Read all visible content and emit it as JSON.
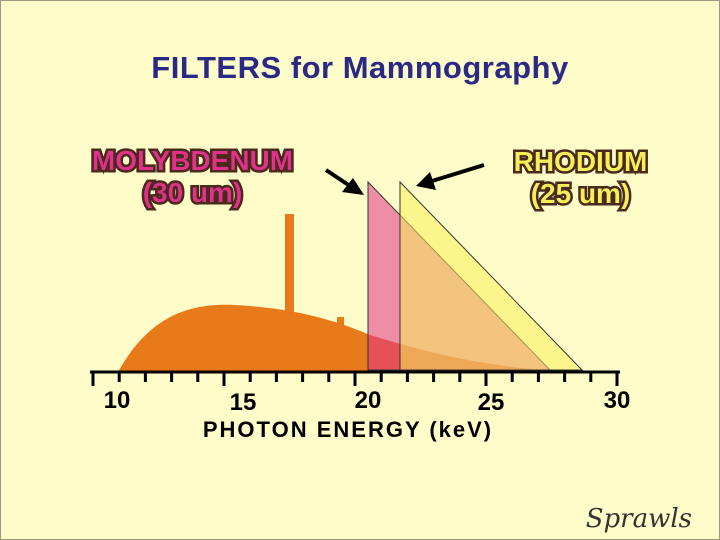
{
  "title": "FILTERS for Mammography",
  "molybdenum": {
    "name": "MOLYBDENUM",
    "thickness": "(30 um)",
    "color": "#e0328a",
    "edge_kev": 20.0
  },
  "rhodium": {
    "name": "RHODIUM",
    "thickness": "(25 um)",
    "color": "#f7ee5a",
    "edge_kev": 23.2
  },
  "chart_data": {
    "type": "area",
    "xlabel": "PHOTON ENERGY (keV)",
    "x_ticks": [
      "10",
      "15",
      "20",
      "25",
      "30"
    ],
    "xlim": [
      10,
      30
    ],
    "spectrum_color": "#e87a1a",
    "characteristic_lines_kev": [
      17.5,
      19.6
    ]
  },
  "signature": "Sprawls"
}
